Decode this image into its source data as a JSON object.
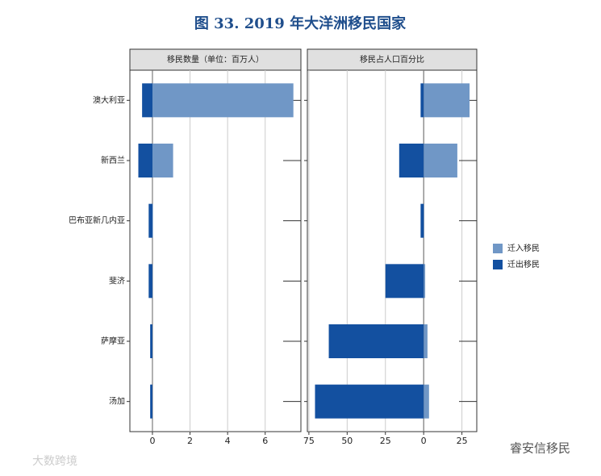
{
  "title": "图 33. 2019 年大洋洲移民国家",
  "chart_data": [
    {
      "type": "bar",
      "orientation": "horizontal",
      "title": "移民数量（单位：百万人）",
      "categories": [
        "澳大利亚",
        "新西兰",
        "巴布亚新几内亚",
        "斐济",
        "萨摩亚",
        "汤加"
      ],
      "series": [
        {
          "name": "迁入移民",
          "color": "#7097c6",
          "values": [
            7.5,
            1.1,
            0.03,
            0.01,
            0.005,
            0.004
          ]
        },
        {
          "name": "迁出移民",
          "color": "#1350a0",
          "values": [
            -0.55,
            -0.75,
            -0.2,
            -0.2,
            -0.12,
            -0.12
          ]
        }
      ],
      "xlim": [
        -1.2,
        7.9
      ],
      "xticks": [
        0,
        2,
        4,
        6
      ],
      "grid": true
    },
    {
      "type": "bar",
      "orientation": "horizontal",
      "title": "移民占人口百分比",
      "categories": [
        "澳大利亚",
        "新西兰",
        "巴布亚新几内亚",
        "斐济",
        "萨摩亚",
        "汤加"
      ],
      "series": [
        {
          "name": "迁入移民",
          "color": "#7097c6",
          "values": [
            30,
            22,
            0.3,
            1,
            2.5,
            3.5
          ]
        },
        {
          "name": "迁出移民",
          "color": "#1350a0",
          "values": [
            -2,
            -16,
            -2,
            -25,
            -62,
            -71
          ]
        }
      ],
      "xlim": [
        -76,
        34.7
      ],
      "xticks": [
        {
          "value": -75,
          "label": "75"
        },
        {
          "value": -50,
          "label": "50"
        },
        {
          "value": -25,
          "label": "25"
        },
        0,
        25
      ],
      "grid": true
    }
  ],
  "watermarks": [
    "大数跨境",
    "睿安信移民"
  ]
}
